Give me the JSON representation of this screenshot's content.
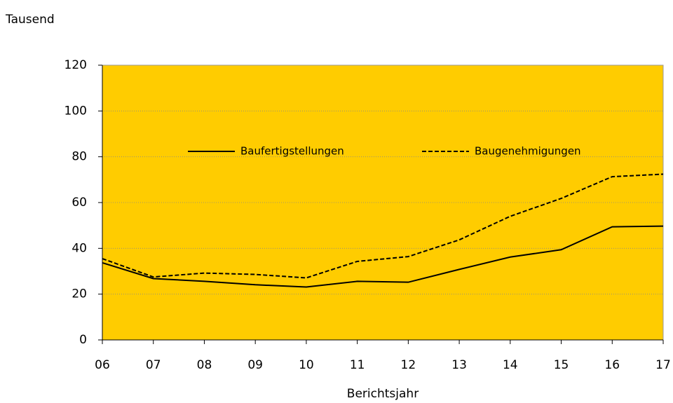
{
  "chart_data": {
    "type": "line",
    "y_label": "Tausend",
    "x_label": "Berichtsjahr",
    "categories": [
      "06",
      "07",
      "08",
      "09",
      "10",
      "11",
      "12",
      "13",
      "14",
      "15",
      "16",
      "17"
    ],
    "series": [
      {
        "name": "Baufertigstellungen",
        "color": "#000000",
        "linestyle": "solid",
        "values": [
          33.7,
          26.8,
          25.6,
          24.1,
          23.1,
          25.6,
          25.2,
          30.8,
          36.2,
          39.4,
          49.4,
          49.7
        ]
      },
      {
        "name": "Baugenehmigungen",
        "color": "#000000",
        "linestyle": "dashed",
        "values": [
          35.5,
          27.5,
          29.2,
          28.6,
          27.1,
          34.3,
          36.4,
          43.7,
          54.0,
          61.8,
          71.3,
          72.4
        ]
      }
    ],
    "ylim": [
      0,
      120
    ],
    "yticks": [
      0,
      20,
      40,
      60,
      80,
      100,
      120
    ],
    "grid": true,
    "plot_background": "#FFCC00",
    "legend": "top"
  }
}
